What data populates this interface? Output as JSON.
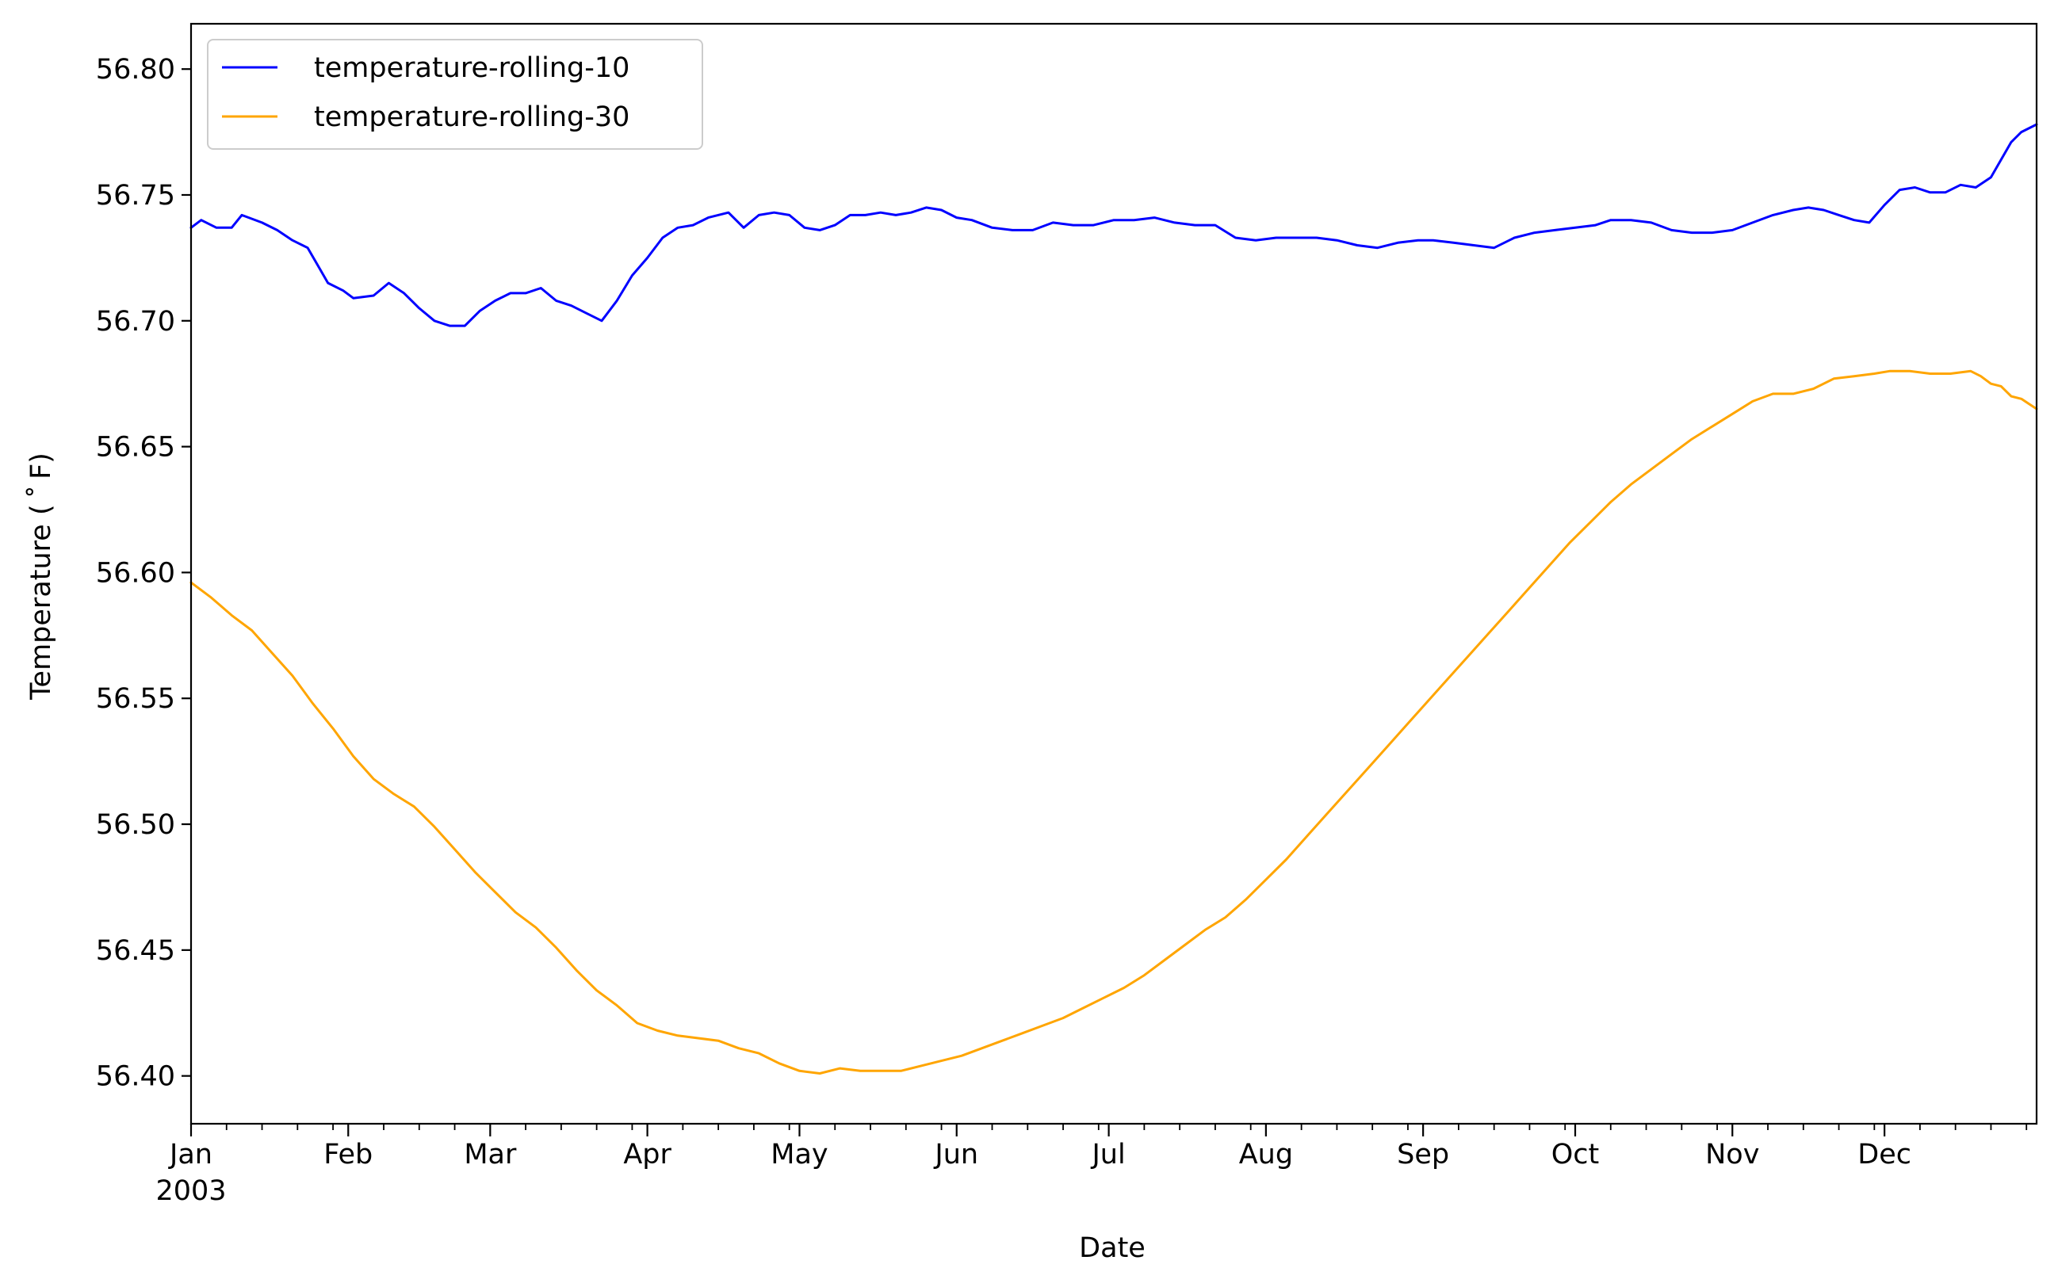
{
  "chart_data": {
    "type": "line",
    "title": "",
    "xlabel": "Date",
    "ylabel": "Temperature ($^\\circ$F)",
    "ylabel_display": "Temperature ( ˚ F)",
    "xlim": [
      "2003-01-01",
      "2003-12-31"
    ],
    "ylim": [
      56.381,
      56.818
    ],
    "yticks": [
      56.4,
      56.45,
      56.5,
      56.55,
      56.6,
      56.65,
      56.7,
      56.75,
      56.8
    ],
    "ytick_labels": [
      "56.40",
      "56.45",
      "56.50",
      "56.55",
      "56.60",
      "56.65",
      "56.70",
      "56.75",
      "56.80"
    ],
    "xticks": [
      {
        "date": "2003-01-01",
        "label": "Jan",
        "sublabel": "2003"
      },
      {
        "date": "2003-02-01",
        "label": "Feb"
      },
      {
        "date": "2003-03-01",
        "label": "Mar"
      },
      {
        "date": "2003-04-01",
        "label": "Apr"
      },
      {
        "date": "2003-05-01",
        "label": "May"
      },
      {
        "date": "2003-06-01",
        "label": "Jun"
      },
      {
        "date": "2003-07-01",
        "label": "Jul"
      },
      {
        "date": "2003-08-01",
        "label": "Aug"
      },
      {
        "date": "2003-09-01",
        "label": "Sep"
      },
      {
        "date": "2003-10-01",
        "label": "Oct"
      },
      {
        "date": "2003-11-01",
        "label": "Nov"
      },
      {
        "date": "2003-12-01",
        "label": "Dec"
      }
    ],
    "grid": false,
    "legend_position": "top-left",
    "series": [
      {
        "name": "temperature-rolling-10",
        "color": "#0000ff",
        "points": [
          [
            "2003-01-01",
            56.737
          ],
          [
            "2003-01-03",
            56.74
          ],
          [
            "2003-01-06",
            56.737
          ],
          [
            "2003-01-09",
            56.737
          ],
          [
            "2003-01-11",
            56.742
          ],
          [
            "2003-01-15",
            56.739
          ],
          [
            "2003-01-18",
            56.736
          ],
          [
            "2003-01-21",
            56.732
          ],
          [
            "2003-01-24",
            56.729
          ],
          [
            "2003-01-26",
            56.722
          ],
          [
            "2003-01-28",
            56.715
          ],
          [
            "2003-01-31",
            56.712
          ],
          [
            "2003-02-02",
            56.709
          ],
          [
            "2003-02-06",
            56.71
          ],
          [
            "2003-02-09",
            56.715
          ],
          [
            "2003-02-12",
            56.711
          ],
          [
            "2003-02-15",
            56.705
          ],
          [
            "2003-02-18",
            56.7
          ],
          [
            "2003-02-21",
            56.698
          ],
          [
            "2003-02-24",
            56.698
          ],
          [
            "2003-02-27",
            56.704
          ],
          [
            "2003-03-02",
            56.708
          ],
          [
            "2003-03-05",
            56.711
          ],
          [
            "2003-03-08",
            56.711
          ],
          [
            "2003-03-11",
            56.713
          ],
          [
            "2003-03-14",
            56.708
          ],
          [
            "2003-03-17",
            56.706
          ],
          [
            "2003-03-20",
            56.703
          ],
          [
            "2003-03-23",
            56.7
          ],
          [
            "2003-03-26",
            56.708
          ],
          [
            "2003-03-29",
            56.718
          ],
          [
            "2003-04-01",
            56.725
          ],
          [
            "2003-04-04",
            56.733
          ],
          [
            "2003-04-07",
            56.737
          ],
          [
            "2003-04-10",
            56.738
          ],
          [
            "2003-04-13",
            56.741
          ],
          [
            "2003-04-17",
            56.743
          ],
          [
            "2003-04-20",
            56.737
          ],
          [
            "2003-04-23",
            56.742
          ],
          [
            "2003-04-26",
            56.743
          ],
          [
            "2003-04-29",
            56.742
          ],
          [
            "2003-05-02",
            56.737
          ],
          [
            "2003-05-05",
            56.736
          ],
          [
            "2003-05-08",
            56.738
          ],
          [
            "2003-05-11",
            56.742
          ],
          [
            "2003-05-14",
            56.742
          ],
          [
            "2003-05-17",
            56.743
          ],
          [
            "2003-05-20",
            56.742
          ],
          [
            "2003-05-23",
            56.743
          ],
          [
            "2003-05-26",
            56.745
          ],
          [
            "2003-05-29",
            56.744
          ],
          [
            "2003-06-01",
            56.741
          ],
          [
            "2003-06-04",
            56.74
          ],
          [
            "2003-06-08",
            56.737
          ],
          [
            "2003-06-12",
            56.736
          ],
          [
            "2003-06-16",
            56.736
          ],
          [
            "2003-06-20",
            56.739
          ],
          [
            "2003-06-24",
            56.738
          ],
          [
            "2003-06-28",
            56.738
          ],
          [
            "2003-07-02",
            56.74
          ],
          [
            "2003-07-06",
            56.74
          ],
          [
            "2003-07-10",
            56.741
          ],
          [
            "2003-07-14",
            56.739
          ],
          [
            "2003-07-18",
            56.738
          ],
          [
            "2003-07-22",
            56.738
          ],
          [
            "2003-07-26",
            56.733
          ],
          [
            "2003-07-30",
            56.732
          ],
          [
            "2003-08-03",
            56.733
          ],
          [
            "2003-08-07",
            56.733
          ],
          [
            "2003-08-11",
            56.733
          ],
          [
            "2003-08-15",
            56.732
          ],
          [
            "2003-08-19",
            56.73
          ],
          [
            "2003-08-23",
            56.729
          ],
          [
            "2003-08-27",
            56.731
          ],
          [
            "2003-08-31",
            56.732
          ],
          [
            "2003-09-03",
            56.732
          ],
          [
            "2003-09-07",
            56.731
          ],
          [
            "2003-09-11",
            56.73
          ],
          [
            "2003-09-15",
            56.729
          ],
          [
            "2003-09-19",
            56.733
          ],
          [
            "2003-09-23",
            56.735
          ],
          [
            "2003-09-27",
            56.736
          ],
          [
            "2003-10-01",
            56.737
          ],
          [
            "2003-10-05",
            56.738
          ],
          [
            "2003-10-08",
            56.74
          ],
          [
            "2003-10-12",
            56.74
          ],
          [
            "2003-10-16",
            56.739
          ],
          [
            "2003-10-20",
            56.736
          ],
          [
            "2003-10-24",
            56.735
          ],
          [
            "2003-10-28",
            56.735
          ],
          [
            "2003-11-01",
            56.736
          ],
          [
            "2003-11-05",
            56.739
          ],
          [
            "2003-11-09",
            56.742
          ],
          [
            "2003-11-13",
            56.744
          ],
          [
            "2003-11-16",
            56.745
          ],
          [
            "2003-11-19",
            56.744
          ],
          [
            "2003-11-22",
            56.742
          ],
          [
            "2003-11-25",
            56.74
          ],
          [
            "2003-11-28",
            56.739
          ],
          [
            "2003-12-01",
            56.746
          ],
          [
            "2003-12-04",
            56.752
          ],
          [
            "2003-12-07",
            56.753
          ],
          [
            "2003-12-10",
            56.751
          ],
          [
            "2003-12-13",
            56.751
          ],
          [
            "2003-12-16",
            56.754
          ],
          [
            "2003-12-19",
            56.753
          ],
          [
            "2003-12-22",
            56.757
          ],
          [
            "2003-12-24",
            56.764
          ],
          [
            "2003-12-26",
            56.771
          ],
          [
            "2003-12-28",
            56.775
          ],
          [
            "2003-12-31",
            56.778
          ]
        ]
      },
      {
        "name": "temperature-rolling-30",
        "color": "#ffa500",
        "points": [
          [
            "2003-01-01",
            56.596
          ],
          [
            "2003-01-05",
            56.59
          ],
          [
            "2003-01-09",
            56.583
          ],
          [
            "2003-01-13",
            56.577
          ],
          [
            "2003-01-17",
            56.568
          ],
          [
            "2003-01-21",
            56.559
          ],
          [
            "2003-01-25",
            56.548
          ],
          [
            "2003-01-29",
            56.538
          ],
          [
            "2003-02-02",
            56.527
          ],
          [
            "2003-02-06",
            56.518
          ],
          [
            "2003-02-10",
            56.512
          ],
          [
            "2003-02-14",
            56.507
          ],
          [
            "2003-02-18",
            56.499
          ],
          [
            "2003-02-22",
            56.49
          ],
          [
            "2003-02-26",
            56.481
          ],
          [
            "2003-03-02",
            56.473
          ],
          [
            "2003-03-06",
            56.465
          ],
          [
            "2003-03-10",
            56.459
          ],
          [
            "2003-03-14",
            56.451
          ],
          [
            "2003-03-18",
            56.442
          ],
          [
            "2003-03-22",
            56.434
          ],
          [
            "2003-03-26",
            56.428
          ],
          [
            "2003-03-30",
            56.421
          ],
          [
            "2003-04-03",
            56.418
          ],
          [
            "2003-04-07",
            56.416
          ],
          [
            "2003-04-11",
            56.415
          ],
          [
            "2003-04-15",
            56.414
          ],
          [
            "2003-04-19",
            56.411
          ],
          [
            "2003-04-23",
            56.409
          ],
          [
            "2003-04-27",
            56.405
          ],
          [
            "2003-05-01",
            56.402
          ],
          [
            "2003-05-05",
            56.401
          ],
          [
            "2003-05-09",
            56.403
          ],
          [
            "2003-05-13",
            56.402
          ],
          [
            "2003-05-17",
            56.402
          ],
          [
            "2003-05-21",
            56.402
          ],
          [
            "2003-05-25",
            56.404
          ],
          [
            "2003-05-29",
            56.406
          ],
          [
            "2003-06-02",
            56.408
          ],
          [
            "2003-06-06",
            56.411
          ],
          [
            "2003-06-10",
            56.414
          ],
          [
            "2003-06-14",
            56.417
          ],
          [
            "2003-06-18",
            56.42
          ],
          [
            "2003-06-22",
            56.423
          ],
          [
            "2003-06-26",
            56.427
          ],
          [
            "2003-06-30",
            56.431
          ],
          [
            "2003-07-04",
            56.435
          ],
          [
            "2003-07-08",
            56.44
          ],
          [
            "2003-07-12",
            56.446
          ],
          [
            "2003-07-16",
            56.452
          ],
          [
            "2003-07-20",
            56.458
          ],
          [
            "2003-07-24",
            56.463
          ],
          [
            "2003-07-28",
            56.47
          ],
          [
            "2003-08-01",
            56.478
          ],
          [
            "2003-08-05",
            56.486
          ],
          [
            "2003-08-09",
            56.495
          ],
          [
            "2003-08-13",
            56.504
          ],
          [
            "2003-08-17",
            56.513
          ],
          [
            "2003-08-21",
            56.522
          ],
          [
            "2003-08-25",
            56.531
          ],
          [
            "2003-08-29",
            56.54
          ],
          [
            "2003-09-02",
            56.549
          ],
          [
            "2003-09-06",
            56.558
          ],
          [
            "2003-09-10",
            56.567
          ],
          [
            "2003-09-14",
            56.576
          ],
          [
            "2003-09-18",
            56.585
          ],
          [
            "2003-09-22",
            56.594
          ],
          [
            "2003-09-26",
            56.603
          ],
          [
            "2003-09-30",
            56.612
          ],
          [
            "2003-10-04",
            56.62
          ],
          [
            "2003-10-08",
            56.628
          ],
          [
            "2003-10-12",
            56.635
          ],
          [
            "2003-10-16",
            56.641
          ],
          [
            "2003-10-20",
            56.647
          ],
          [
            "2003-10-24",
            56.653
          ],
          [
            "2003-10-28",
            56.658
          ],
          [
            "2003-11-01",
            56.663
          ],
          [
            "2003-11-05",
            56.668
          ],
          [
            "2003-11-09",
            56.671
          ],
          [
            "2003-11-13",
            56.671
          ],
          [
            "2003-11-17",
            56.673
          ],
          [
            "2003-11-21",
            56.677
          ],
          [
            "2003-11-25",
            56.678
          ],
          [
            "2003-11-29",
            56.679
          ],
          [
            "2003-12-02",
            56.68
          ],
          [
            "2003-12-06",
            56.68
          ],
          [
            "2003-12-10",
            56.679
          ],
          [
            "2003-12-14",
            56.679
          ],
          [
            "2003-12-18",
            56.68
          ],
          [
            "2003-12-20",
            56.678
          ],
          [
            "2003-12-22",
            56.675
          ],
          [
            "2003-12-24",
            56.674
          ],
          [
            "2003-12-26",
            56.67
          ],
          [
            "2003-12-28",
            56.669
          ],
          [
            "2003-12-31",
            56.665
          ]
        ]
      }
    ]
  }
}
